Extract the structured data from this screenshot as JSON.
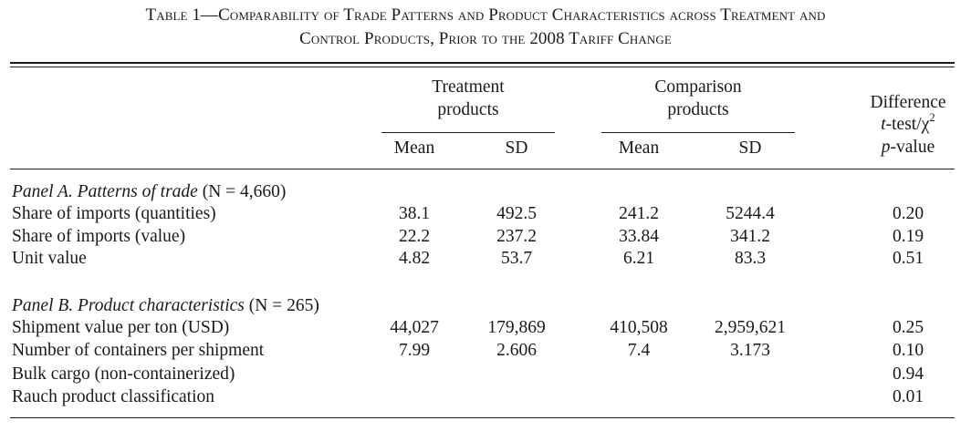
{
  "table": {
    "caption_line1": "Table 1—Comparability of Trade Patterns and Product Characteristics across Treatment and",
    "caption_line2": "Control Products, Prior to the 2008 Tariff Change",
    "header": {
      "treatment_line1": "Treatment",
      "treatment_line2": "products",
      "comparison_line1": "Comparison",
      "comparison_line2": "products",
      "difference_line1": "Difference",
      "difference_line2_prefix": "t",
      "difference_line2_rest": "-test/χ",
      "difference_line2_sup": "2",
      "difference_line3_prefix": "p",
      "difference_line3_rest": "-value",
      "mean": "Mean",
      "sd": "SD"
    },
    "panel_a": {
      "title": "Panel A. Patterns of trade",
      "n": "(N = 4,660)",
      "rows": [
        {
          "label": "Share of imports (quantities)",
          "t_mean": "38.1",
          "t_sd": "492.5",
          "c_mean": "241.2",
          "c_sd": "5244.4",
          "p": "0.20"
        },
        {
          "label": "Share of imports (value)",
          "t_mean": "22.2",
          "t_sd": "237.2",
          "c_mean": "33.84",
          "c_sd": "341.2",
          "p": "0.19"
        },
        {
          "label": "Unit value",
          "t_mean": "4.82",
          "t_sd": "53.7",
          "c_mean": "6.21",
          "c_sd": "83.3",
          "p": "0.51"
        }
      ]
    },
    "panel_b": {
      "title": "Panel B. Product characteristics",
      "n": "(N = 265)",
      "rows": [
        {
          "label": "Shipment value per ton (USD)",
          "t_mean": "44,027",
          "t_sd": "179,869",
          "c_mean": "410,508",
          "c_sd": "2,959,621",
          "p": "0.25"
        },
        {
          "label": "Number of containers per shipment",
          "t_mean": "7.99",
          "t_sd": "2.606",
          "c_mean": "7.4",
          "c_sd": "3.173",
          "p": "0.10"
        },
        {
          "label": "Bulk cargo (non-containerized)",
          "t_mean": "",
          "t_sd": "",
          "c_mean": "",
          "c_sd": "",
          "p": "0.94"
        },
        {
          "label": "Rauch product classification",
          "t_mean": "",
          "t_sd": "",
          "c_mean": "",
          "c_sd": "",
          "p": "0.01"
        }
      ]
    }
  }
}
